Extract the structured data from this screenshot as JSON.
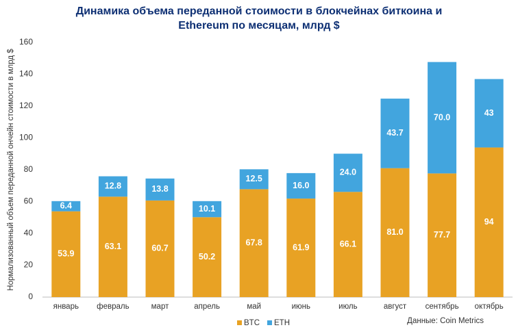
{
  "chart_data": {
    "type": "stacked_bar",
    "title": "Динамика объема переданной стоимости в блокчейнах биткоина и Ethereum по месяцам, млрд $",
    "y_label": "Нормализованный объем переданной ончейн стоимости в млрд $",
    "source": "Данные: Coin Metrics",
    "categories": [
      "январь",
      "февраль",
      "март",
      "апрель",
      "май",
      "июнь",
      "июль",
      "август",
      "сентябрь",
      "октябрь"
    ],
    "series": [
      {
        "name": "BTC",
        "color": "#e8a224",
        "values": [
          53.9,
          63.1,
          60.7,
          50.2,
          67.8,
          61.9,
          66.1,
          81.0,
          77.7,
          94
        ],
        "value_labels": [
          "53.9",
          "63.1",
          "60.7",
          "50.2",
          "67.8",
          "61.9",
          "66.1",
          "81.0",
          "77.7",
          "94"
        ]
      },
      {
        "name": "ETH",
        "color": "#42a5de",
        "values": [
          6.4,
          12.8,
          13.8,
          10.1,
          12.5,
          16.0,
          24.0,
          43.7,
          70.0,
          43
        ],
        "value_labels": [
          "6.4",
          "12.8",
          "13.8",
          "10.1",
          "12.5",
          "16.0",
          "24.0",
          "43.7",
          "70.0",
          "43"
        ]
      }
    ],
    "ylim": [
      0,
      160
    ],
    "yticks": [
      0,
      20,
      40,
      60,
      80,
      100,
      120,
      140,
      160
    ],
    "grid": false,
    "legend": "bottom"
  }
}
